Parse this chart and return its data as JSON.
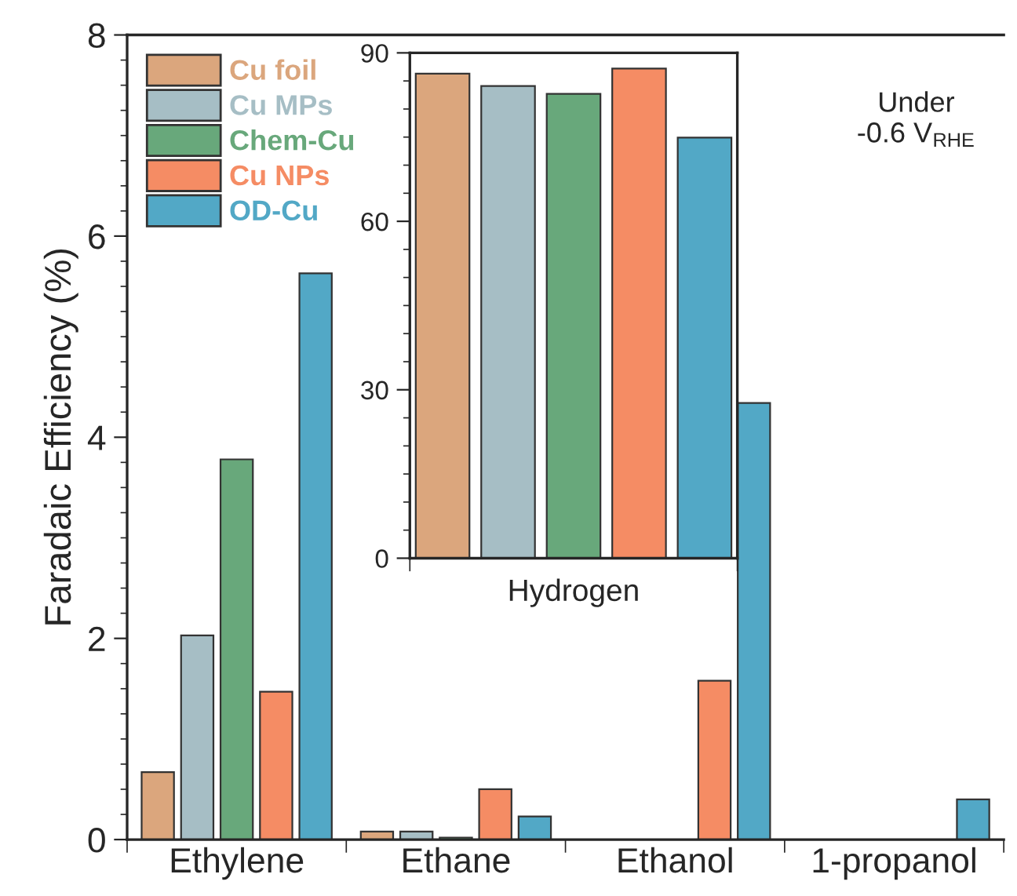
{
  "chart_data": [
    {
      "type": "bar",
      "ylabel": "Faradaic Efficiency (%)",
      "categories": [
        "Ethylene",
        "Ethane",
        "Ethanol",
        "1-propanol"
      ],
      "ylim": [
        0,
        8
      ],
      "yticks": [
        0,
        2,
        4,
        6,
        8
      ],
      "legend": "top left",
      "grid": false,
      "annotations": [
        "Under\n-0.6 V$_{RHE}$"
      ],
      "series": [
        {
          "name": "Cu foil",
          "color": "#dba67d",
          "values": [
            0.67,
            0.08,
            0,
            0
          ]
        },
        {
          "name": "Cu MPs",
          "color": "#a6bec5",
          "values": [
            2.03,
            0.08,
            0,
            0
          ]
        },
        {
          "name": "Chem-Cu",
          "color": "#68a87b",
          "values": [
            3.78,
            0.02,
            0,
            0
          ]
        },
        {
          "name": "Cu NPs",
          "color": "#f58c64",
          "values": [
            1.47,
            0.5,
            1.58,
            0
          ]
        },
        {
          "name": "OD-Cu",
          "color": "#52a8c6",
          "values": [
            5.63,
            0.23,
            4.34,
            0.4
          ]
        }
      ]
    },
    {
      "type": "bar",
      "categories": [
        null,
        null,
        null,
        null,
        null
      ],
      "xlabel": "Hydrogen",
      "ylim": [
        0,
        90
      ],
      "yticks": [
        0,
        30,
        60,
        90
      ],
      "grid": false,
      "values": [
        86.3,
        84.1,
        82.7,
        87.2,
        74.9
      ],
      "colors": [
        "#dba67d",
        "#a6bec5",
        "#68a87b",
        "#f58c64",
        "#52a8c6"
      ]
    }
  ]
}
